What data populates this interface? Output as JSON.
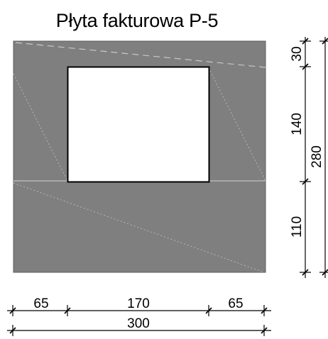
{
  "title": "Płyta fakturowa P-5",
  "colors": {
    "panel_fill": "#7f7f7f",
    "opening_fill": "#ffffff",
    "line": "#000000",
    "texture_line": "#c9c9c9"
  },
  "dimensions": {
    "horizontal": {
      "left": "65",
      "middle": "170",
      "right": "65",
      "total": "300"
    },
    "vertical": {
      "top": "30",
      "middle": "140",
      "bottom": "110",
      "total": "280"
    }
  }
}
